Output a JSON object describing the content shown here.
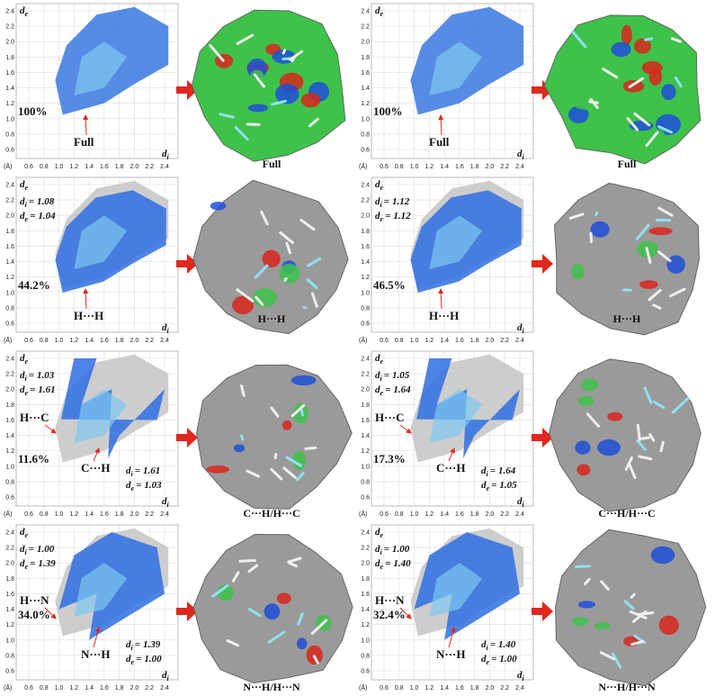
{
  "axes": {
    "symbol": "d",
    "x_sub": "i",
    "y_sub": "e",
    "equals": "=",
    "unit": "(Å)",
    "xticks": [
      "0.6",
      "0.8",
      "1.0",
      "1.2",
      "1.4",
      "1.6",
      "1.8",
      "2.0",
      "2.2",
      "2.4"
    ],
    "yticks": [
      "0.6",
      "0.8",
      "1.0",
      "1.2",
      "1.4",
      "1.6",
      "1.8",
      "2.0",
      "2.2",
      "2.4"
    ]
  },
  "panels": [
    {
      "percent": "100%",
      "pointers": [
        {
          "label": "Full"
        }
      ],
      "surface_label": "Full"
    },
    {
      "percent": "100%",
      "pointers": [
        {
          "label": "Full"
        }
      ],
      "surface_label": "Full"
    },
    {
      "percent": "44.2%",
      "coords": [
        {
          "sub": "i",
          "value": "1.08"
        },
        {
          "sub": "e",
          "value": "1.04"
        }
      ],
      "pointers": [
        {
          "label": "H···H"
        }
      ],
      "surface_label": "H···H"
    },
    {
      "percent": "46.5%",
      "coords": [
        {
          "sub": "i",
          "value": "1.12"
        },
        {
          "sub": "e",
          "value": "1.12"
        }
      ],
      "pointers": [
        {
          "label": "H···H"
        }
      ],
      "surface_label": "H···H"
    },
    {
      "percent": "11.6%",
      "coords": [
        {
          "sub": "i",
          "value": "1.03"
        },
        {
          "sub": "e",
          "value": "1.61"
        }
      ],
      "pointers": [
        {
          "label": "H···C"
        },
        {
          "label": "C···H"
        }
      ],
      "coords_2": [
        {
          "sub": "i",
          "value": "1.61"
        },
        {
          "sub": "e",
          "value": "1.03"
        }
      ],
      "surface_label": "C···H/H···C"
    },
    {
      "percent": "17.3%",
      "coords": [
        {
          "sub": "i",
          "value": "1.05"
        },
        {
          "sub": "e",
          "value": "1.64"
        }
      ],
      "pointers": [
        {
          "label": "H···C"
        },
        {
          "label": "C···H"
        }
      ],
      "coords_2": [
        {
          "sub": "i",
          "value": "1.64"
        },
        {
          "sub": "e",
          "value": "1.05"
        }
      ],
      "surface_label": "C···H/H···C"
    },
    {
      "percent": "34.0%",
      "coords": [
        {
          "sub": "i",
          "value": "1.00"
        },
        {
          "sub": "e",
          "value": "1.39"
        }
      ],
      "pointers": [
        {
          "label": "H···N"
        },
        {
          "label": "N···H"
        }
      ],
      "coords_2": [
        {
          "sub": "i",
          "value": "1.39"
        },
        {
          "sub": "e",
          "value": "1.00"
        }
      ],
      "surface_label": "N···H/H···N"
    },
    {
      "percent": "32.4%",
      "coords": [
        {
          "sub": "i",
          "value": "1.00"
        },
        {
          "sub": "e",
          "value": "1.40"
        }
      ],
      "pointers": [
        {
          "label": "H···N"
        },
        {
          "label": "N···H"
        }
      ],
      "coords_2": [
        {
          "sub": "i",
          "value": "1.40"
        },
        {
          "sub": "e",
          "value": "1.00"
        }
      ],
      "surface_label": "N···H/H···N"
    }
  ]
}
